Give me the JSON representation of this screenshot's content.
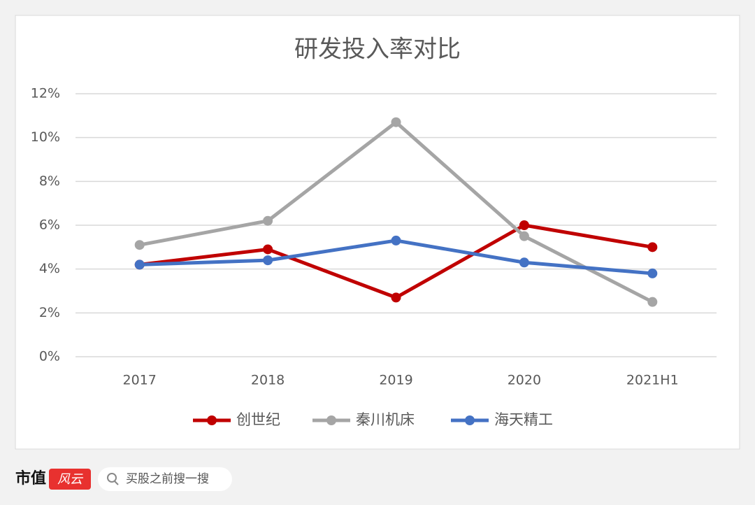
{
  "chart_data": {
    "type": "line",
    "title": "研发投入率对比",
    "categories": [
      "2017",
      "2018",
      "2019",
      "2020",
      "2021H1"
    ],
    "series": [
      {
        "name": "创世纪",
        "color": "#c00000",
        "values": [
          4.2,
          4.9,
          2.7,
          6.0,
          5.0
        ]
      },
      {
        "name": "秦川机床",
        "color": "#a5a5a5",
        "values": [
          5.1,
          6.2,
          10.7,
          5.5,
          2.5
        ]
      },
      {
        "name": "海天精工",
        "color": "#4472c4",
        "values": [
          4.2,
          4.4,
          5.3,
          4.3,
          3.8
        ]
      }
    ],
    "ylim": [
      0,
      12
    ],
    "yticks": [
      {
        "value": 0,
        "label": "0%"
      },
      {
        "value": 2,
        "label": "2%"
      },
      {
        "value": 4,
        "label": "4%"
      },
      {
        "value": 6,
        "label": "6%"
      },
      {
        "value": 8,
        "label": "8%"
      },
      {
        "value": 10,
        "label": "10%"
      },
      {
        "value": 12,
        "label": "12%"
      }
    ],
    "grid": true,
    "legend": "bottom"
  },
  "footer": {
    "brand": "市值",
    "brand_logo": "风云",
    "search_placeholder": "买股之前搜一搜"
  }
}
